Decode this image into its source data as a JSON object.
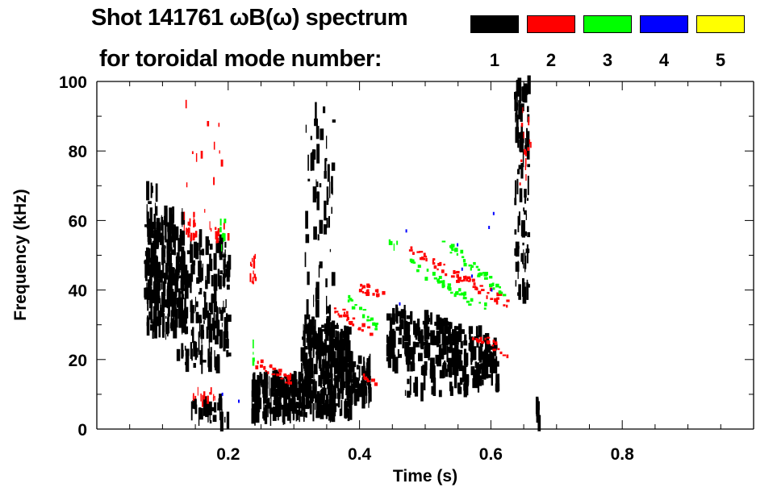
{
  "chart_data": {
    "type": "heatmap",
    "title_line1": "Shot 141761 ωB(ω) spectrum",
    "title_line2": "for toroidal mode number:",
    "xlabel": "Time (s)",
    "ylabel": "Frequency (kHz)",
    "xlim": [
      0,
      1.0
    ],
    "ylim": [
      0,
      100
    ],
    "xticks": [
      "0.2",
      "0.4",
      "0.6",
      "0.8"
    ],
    "xtick_values": [
      0.2,
      0.4,
      0.6,
      0.8
    ],
    "yticks": [
      "0",
      "20",
      "40",
      "60",
      "80",
      "100"
    ],
    "ytick_values": [
      0,
      20,
      40,
      60,
      80,
      100
    ],
    "legend": [
      {
        "label": "1",
        "color": "#000000"
      },
      {
        "label": "2",
        "color": "#ff0000"
      },
      {
        "label": "3",
        "color": "#00ff00"
      },
      {
        "label": "4",
        "color": "#0000ff"
      },
      {
        "label": "5",
        "color": "#ffff00"
      }
    ],
    "legend_placement": "top",
    "features": [
      {
        "mode": 1,
        "kind": "patch",
        "t": [
          0.075,
          0.13
        ],
        "f": [
          28,
          62
        ],
        "count": 260
      },
      {
        "mode": 1,
        "kind": "patch",
        "t": [
          0.07,
          0.09
        ],
        "f": [
          35,
          70
        ],
        "count": 40
      },
      {
        "mode": 1,
        "kind": "patch",
        "t": [
          0.12,
          0.2
        ],
        "f": [
          18,
          55
        ],
        "count": 200
      },
      {
        "mode": 1,
        "kind": "patch",
        "t": [
          0.14,
          0.2
        ],
        "f": [
          2,
          8
        ],
        "count": 30
      },
      {
        "mode": 1,
        "kind": "patch",
        "t": [
          0.235,
          0.31
        ],
        "f": [
          3,
          15
        ],
        "count": 170
      },
      {
        "mode": 1,
        "kind": "patch",
        "t": [
          0.31,
          0.385
        ],
        "f": [
          4,
          30
        ],
        "count": 330
      },
      {
        "mode": 1,
        "kind": "patch",
        "t": [
          0.38,
          0.415
        ],
        "f": [
          8,
          20
        ],
        "count": 80
      },
      {
        "mode": 1,
        "kind": "patch",
        "t": [
          0.315,
          0.36
        ],
        "f": [
          30,
          95
        ],
        "count": 60
      },
      {
        "mode": 1,
        "kind": "chirp",
        "t": [
          0.44,
          0.61
        ],
        "f": [
          27,
          19
        ],
        "width": 8,
        "count": 260
      },
      {
        "mode": 1,
        "kind": "patch",
        "t": [
          0.46,
          0.57
        ],
        "f": [
          10,
          14
        ],
        "count": 25
      },
      {
        "mode": 1,
        "kind": "patch",
        "t": [
          0.635,
          0.656
        ],
        "f": [
          38,
          100
        ],
        "count": 90
      },
      {
        "mode": 1,
        "kind": "patch",
        "t": [
          0.668,
          0.676
        ],
        "f": [
          1,
          7
        ],
        "count": 8
      },
      {
        "mode": 2,
        "kind": "chirp",
        "t": [
          0.473,
          0.625
        ],
        "f": [
          51.4,
          36
        ],
        "width": 1.5,
        "count": 60
      },
      {
        "mode": 2,
        "kind": "chirp",
        "t": [
          0.398,
          0.435
        ],
        "f": [
          40,
          39.5
        ],
        "width": 1.5,
        "count": 20
      },
      {
        "mode": 2,
        "kind": "chirp",
        "t": [
          0.361,
          0.42
        ],
        "f": [
          34.4,
          27.5
        ],
        "width": 1.5,
        "count": 25
      },
      {
        "mode": 2,
        "kind": "chirp",
        "t": [
          0.24,
          0.296
        ],
        "f": [
          19,
          14
        ],
        "width": 1.5,
        "count": 25
      },
      {
        "mode": 2,
        "kind": "chirp",
        "t": [
          0.405,
          0.43
        ],
        "f": [
          15,
          12
        ],
        "width": 1,
        "count": 8
      },
      {
        "mode": 2,
        "kind": "chirp",
        "t": [
          0.57,
          0.625
        ],
        "f": [
          27,
          22
        ],
        "width": 1.5,
        "count": 20
      },
      {
        "mode": 2,
        "kind": "patch",
        "t": [
          0.232,
          0.242
        ],
        "f": [
          42,
          50
        ],
        "count": 14
      },
      {
        "mode": 2,
        "kind": "patch",
        "t": [
          0.13,
          0.15
        ],
        "f": [
          55,
          62
        ],
        "count": 18
      },
      {
        "mode": 2,
        "kind": "patch",
        "t": [
          0.17,
          0.2
        ],
        "f": [
          54,
          60
        ],
        "count": 12
      },
      {
        "mode": 2,
        "kind": "patch",
        "t": [
          0.14,
          0.18
        ],
        "f": [
          7,
          11
        ],
        "count": 14
      },
      {
        "mode": 2,
        "kind": "patch",
        "t": [
          0.13,
          0.19
        ],
        "f": [
          62,
          95
        ],
        "count": 12
      },
      {
        "mode": 2,
        "kind": "patch",
        "t": [
          0.643,
          0.66
        ],
        "f": [
          70,
          100
        ],
        "count": 14
      },
      {
        "mode": 3,
        "kind": "chirp",
        "t": [
          0.525,
          0.62
        ],
        "f": [
          54,
          39
        ],
        "width": 1.5,
        "count": 40
      },
      {
        "mode": 3,
        "kind": "chirp",
        "t": [
          0.475,
          0.59
        ],
        "f": [
          47.4,
          34.4
        ],
        "width": 1.5,
        "count": 40
      },
      {
        "mode": 3,
        "kind": "chirp",
        "t": [
          0.38,
          0.426
        ],
        "f": [
          37.4,
          29
        ],
        "width": 1.5,
        "count": 18
      },
      {
        "mode": 3,
        "kind": "patch",
        "t": [
          0.185,
          0.195
        ],
        "f": [
          52,
          60
        ],
        "count": 8
      },
      {
        "mode": 3,
        "kind": "patch",
        "t": [
          0.44,
          0.46
        ],
        "f": [
          52,
          54
        ],
        "count": 4
      },
      {
        "mode": 3,
        "kind": "patch",
        "t": [
          0.236,
          0.24
        ],
        "f": [
          18,
          26
        ],
        "count": 4
      },
      {
        "mode": 4,
        "kind": "dots",
        "points": [
          [
            0.47,
            57
          ],
          [
            0.548,
            53
          ],
          [
            0.555,
            46
          ],
          [
            0.57,
            44
          ],
          [
            0.596,
            58
          ],
          [
            0.603,
            62
          ],
          [
            0.46,
            36
          ],
          [
            0.19,
            10
          ],
          [
            0.215,
            8
          ],
          [
            0.6,
            40
          ]
        ]
      }
    ]
  }
}
